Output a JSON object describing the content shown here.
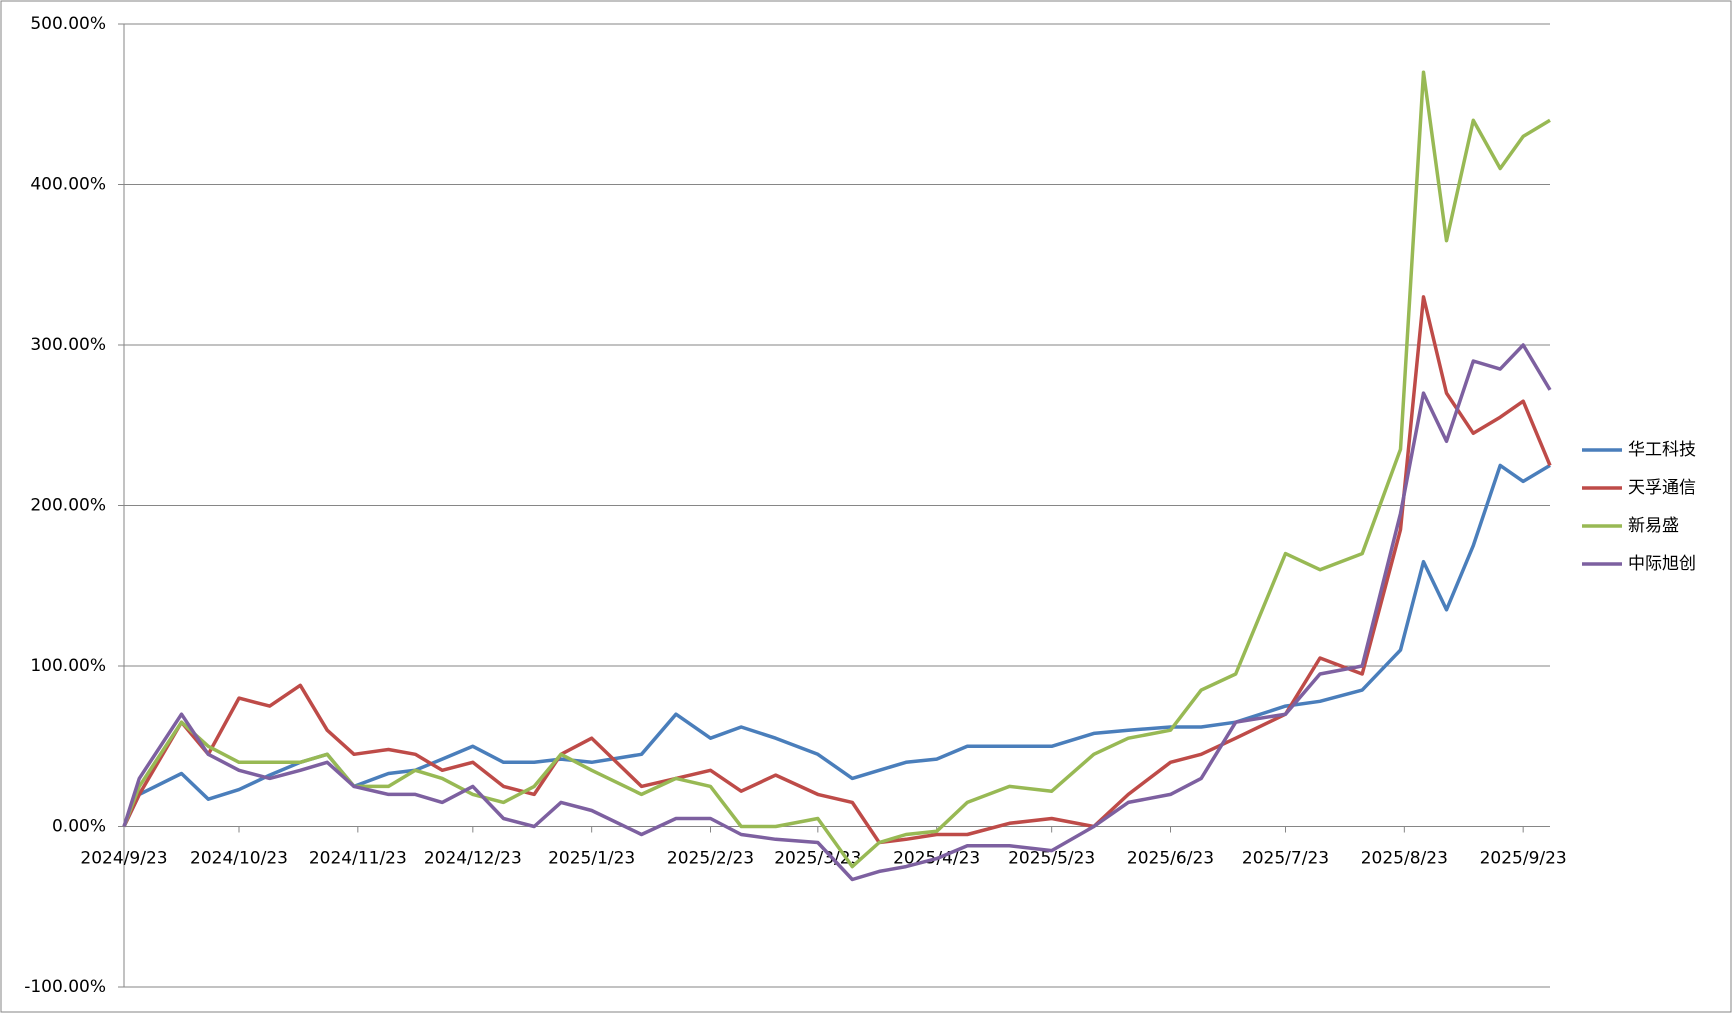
{
  "chart_data": {
    "type": "line",
    "x": [
      "2024/9/23",
      "2024/9/27",
      "2024/10/8",
      "2024/10/15",
      "2024/10/23",
      "2024/10/31",
      "2024/11/8",
      "2024/11/15",
      "2024/11/22",
      "2024/12/1",
      "2024/12/8",
      "2024/12/15",
      "2024/12/23",
      "2024/12/31",
      "2025/1/8",
      "2025/1/15",
      "2025/1/23",
      "2025/2/5",
      "2025/2/14",
      "2025/2/23",
      "2025/3/3",
      "2025/3/12",
      "2025/3/23",
      "2025/4/1",
      "2025/4/8",
      "2025/4/15",
      "2025/4/23",
      "2025/5/1",
      "2025/5/12",
      "2025/5/23",
      "2025/6/3",
      "2025/6/12",
      "2025/6/23",
      "2025/7/1",
      "2025/7/10",
      "2025/7/23",
      "2025/8/1",
      "2025/8/12",
      "2025/8/22",
      "2025/8/28",
      "2025/9/3",
      "2025/9/10",
      "2025/9/17",
      "2025/9/23",
      "2025/9/30"
    ],
    "series": [
      {
        "name": "华工科技",
        "color": "#4a7ebb",
        "values": [
          0,
          20,
          33,
          17,
          23,
          32,
          40,
          45,
          25,
          33,
          35,
          42,
          50,
          40,
          40,
          42,
          40,
          45,
          70,
          55,
          62,
          55,
          45,
          30,
          35,
          40,
          42,
          50,
          50,
          50,
          58,
          60,
          62,
          62,
          65,
          75,
          78,
          85,
          110,
          165,
          135,
          175,
          225,
          215,
          225
        ]
      },
      {
        "name": "天孚通信",
        "color": "#be4b48",
        "values": [
          0,
          20,
          65,
          45,
          80,
          75,
          88,
          60,
          45,
          48,
          45,
          35,
          40,
          25,
          20,
          45,
          55,
          25,
          30,
          35,
          22,
          32,
          20,
          15,
          -10,
          -8,
          -5,
          -5,
          2,
          5,
          0,
          20,
          40,
          45,
          55,
          70,
          105,
          95,
          185,
          330,
          270,
          245,
          255,
          265,
          225
        ]
      },
      {
        "name": "新易盛",
        "color": "#98b954",
        "values": [
          0,
          25,
          65,
          50,
          40,
          40,
          40,
          45,
          25,
          25,
          35,
          30,
          20,
          15,
          25,
          45,
          35,
          20,
          30,
          25,
          0,
          0,
          5,
          -25,
          -10,
          -5,
          -3,
          15,
          25,
          22,
          45,
          55,
          60,
          85,
          95,
          170,
          160,
          170,
          235,
          470,
          365,
          440,
          410,
          430,
          440
        ]
      },
      {
        "name": "中际旭创",
        "color": "#7d60a0",
        "values": [
          0,
          30,
          70,
          45,
          35,
          30,
          35,
          40,
          25,
          20,
          20,
          15,
          25,
          5,
          0,
          15,
          10,
          -5,
          5,
          5,
          -5,
          -8,
          -10,
          -33,
          -28,
          -25,
          -20,
          -12,
          -12,
          -15,
          0,
          15,
          20,
          30,
          65,
          70,
          95,
          100,
          195,
          270,
          240,
          290,
          285,
          300,
          272
        ]
      }
    ],
    "xlim": [
      "2024/9/23",
      "2025/9/30"
    ],
    "xticks": [
      "2024/9/23",
      "2024/10/23",
      "2024/11/23",
      "2024/12/23",
      "2025/1/23",
      "2025/2/23",
      "2025/3/23",
      "2025/4/23",
      "2025/5/23",
      "2025/6/23",
      "2025/7/23",
      "2025/8/23",
      "2025/9/23"
    ],
    "ylim": [
      -100,
      500
    ],
    "yticks": [
      {
        "value": -100,
        "label": "-100.00%"
      },
      {
        "value": 0,
        "label": "0.00%"
      },
      {
        "value": 100,
        "label": "100.00%"
      },
      {
        "value": 200,
        "label": "200.00%"
      },
      {
        "value": 300,
        "label": "300.00%"
      },
      {
        "value": 400,
        "label": "400.00%"
      },
      {
        "value": 500,
        "label": "500.00%"
      }
    ],
    "grid": true,
    "legend": "right"
  }
}
